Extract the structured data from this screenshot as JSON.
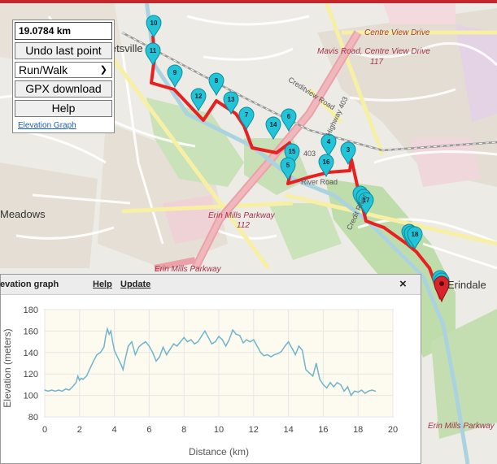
{
  "map": {
    "labels": {
      "centre_view_drive": "Centre View Drive",
      "mavis_road": "Mavis Road, Centre View Drive",
      "mavis_num": "117",
      "creditview_road": "Creditview Road",
      "hwy403": "403",
      "hwy403b": "Highway 403",
      "erin_mills": "Erin Mills Parkway",
      "erin_mills_num": "112",
      "erin_mills_2": "Erin Mills Parkway",
      "erin_mills_3": "Erin Mills Parkway",
      "river_road": "River Road",
      "credit_river": "Credit River",
      "streetsville": "Streetsville",
      "meadowvale": "Meadows",
      "erindale": "Erindale"
    },
    "markers": [
      "10",
      "11",
      "9",
      "8",
      "12",
      "13",
      "7",
      "14",
      "6",
      "15",
      "5",
      "4",
      "16",
      "3",
      "17",
      "18"
    ],
    "route_color": "#e8201f",
    "marker_color": "#22c4d8",
    "end_marker_color": "#d9242b"
  },
  "panel": {
    "distance": "19.0784 km",
    "undo_label": "Undo last point",
    "mode_value": "Run/Walk",
    "gpx_label": "GPX download",
    "help_label": "Help",
    "elevation_link": "Elevation Graph"
  },
  "elevation_window": {
    "title": "levation graph",
    "help_link": "Help",
    "update_link": "Update",
    "close_icon": "×"
  },
  "chart_data": {
    "type": "line",
    "title": "",
    "xlabel": "Distance (km)",
    "ylabel": "Elevation (meters)",
    "xlim": [
      0,
      20
    ],
    "ylim": [
      80,
      180
    ],
    "xticks": [
      0,
      2,
      4,
      6,
      8,
      10,
      12,
      14,
      16,
      18,
      20
    ],
    "yticks": [
      80,
      100,
      120,
      140,
      160,
      180
    ],
    "grid": true,
    "series_color": "#6fb4cc",
    "x": [
      0.0,
      0.2,
      0.4,
      0.6,
      0.8,
      1.0,
      1.2,
      1.4,
      1.6,
      1.8,
      1.9,
      2.0,
      2.1,
      2.2,
      2.4,
      2.6,
      2.8,
      3.0,
      3.2,
      3.4,
      3.5,
      3.6,
      3.7,
      3.8,
      3.9,
      4.0,
      4.2,
      4.4,
      4.5,
      4.6,
      4.8,
      5.0,
      5.2,
      5.4,
      5.6,
      5.8,
      6.0,
      6.2,
      6.4,
      6.6,
      6.8,
      7.0,
      7.2,
      7.4,
      7.6,
      7.8,
      8.0,
      8.2,
      8.4,
      8.6,
      8.8,
      9.0,
      9.2,
      9.4,
      9.6,
      9.8,
      10.0,
      10.2,
      10.4,
      10.6,
      10.8,
      11.0,
      11.2,
      11.4,
      11.6,
      11.8,
      12.0,
      12.2,
      12.4,
      12.6,
      12.8,
      13.0,
      13.2,
      13.4,
      13.6,
      13.8,
      14.0,
      14.2,
      14.4,
      14.6,
      14.8,
      15.0,
      15.2,
      15.4,
      15.6,
      15.8,
      16.0,
      16.2,
      16.4,
      16.6,
      16.8,
      17.0,
      17.2,
      17.4,
      17.6,
      17.8,
      18.0,
      18.2,
      18.4,
      18.6,
      18.8,
      19.0
    ],
    "y": [
      105,
      104,
      105,
      104,
      105,
      104,
      106,
      105,
      108,
      112,
      118,
      114,
      116,
      115,
      118,
      125,
      132,
      138,
      140,
      145,
      155,
      162,
      157,
      160,
      150,
      142,
      135,
      128,
      124,
      132,
      146,
      150,
      138,
      145,
      148,
      150,
      146,
      140,
      132,
      136,
      145,
      138,
      143,
      148,
      146,
      150,
      154,
      150,
      152,
      148,
      150,
      155,
      160,
      154,
      148,
      150,
      155,
      152,
      146,
      152,
      161,
      157,
      156,
      149,
      152,
      150,
      152,
      146,
      140,
      137,
      138,
      136,
      138,
      139,
      141,
      146,
      150,
      144,
      138,
      146,
      142,
      124,
      121,
      118,
      130,
      115,
      110,
      107,
      112,
      108,
      112,
      110,
      104,
      108,
      100,
      104,
      103,
      105,
      102,
      104,
      105,
      104
    ]
  }
}
